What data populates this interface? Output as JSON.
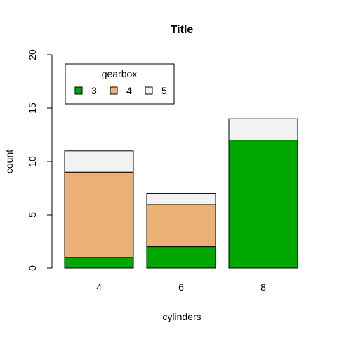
{
  "chart_data": {
    "type": "bar",
    "stacked": true,
    "title": "Title",
    "xlabel": "cylinders",
    "ylabel": "count",
    "categories": [
      "4",
      "6",
      "8"
    ],
    "series": [
      {
        "name": "3",
        "values": [
          1,
          2,
          12
        ],
        "color": "#00A600"
      },
      {
        "name": "4",
        "values": [
          8,
          4,
          0
        ],
        "color": "#ECB176"
      },
      {
        "name": "5",
        "values": [
          2,
          1,
          2
        ],
        "color": "#F2F2F2"
      }
    ],
    "ylim": [
      0,
      20
    ],
    "yticks": [
      0,
      5,
      10,
      15,
      20
    ],
    "grid": false,
    "legend": {
      "title": "gearbox",
      "placement": "top-left"
    }
  }
}
